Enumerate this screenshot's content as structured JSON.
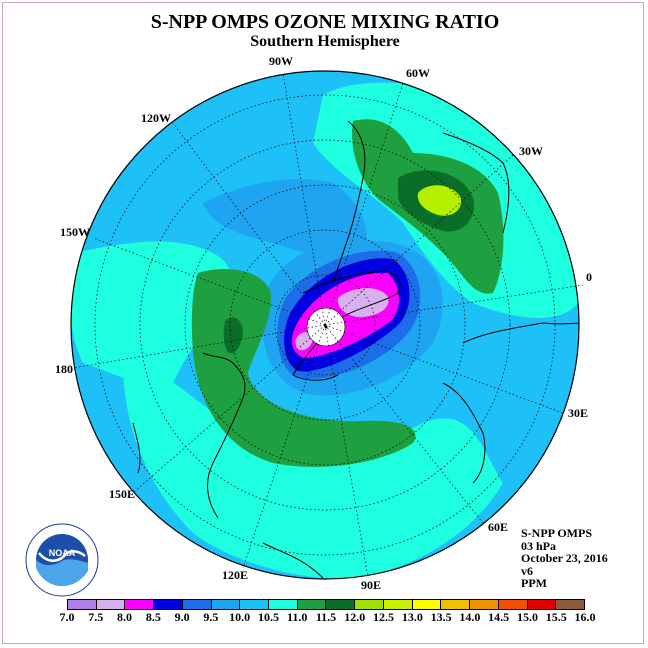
{
  "title": "S-NPP OMPS OZONE MIXING RATIO",
  "subtitle": "Southern Hemisphere",
  "longitude_labels": [
    "90W",
    "60W",
    "30W",
    "120W",
    "150W",
    "0",
    "180",
    "30E",
    "150E",
    "60E",
    "120E",
    "90E"
  ],
  "info": {
    "instrument": "S-NPP OMPS",
    "level": "03 hPa",
    "date": "October 23, 2016",
    "version": "v6",
    "units": "PPM"
  },
  "logo": {
    "name": "NOAA",
    "ring_text": "NATIONAL OCEANIC AND ATMOSPHERIC ADMINISTRATION · U.S. DEPARTMENT OF COMMERCE"
  },
  "colorbar": {
    "colors": [
      "#b07ee8",
      "#d8b0f0",
      "#ff00ff",
      "#0000e0",
      "#1c6ee8",
      "#1ea4f0",
      "#1ec0f8",
      "#1effe0",
      "#1ea040",
      "#0a6e28",
      "#9fe000",
      "#c8f000",
      "#ffff00",
      "#f0c000",
      "#f09000",
      "#f05000",
      "#e00000",
      "#8b5a3c"
    ],
    "labels": [
      "7.0",
      "7.5",
      "8.0",
      "8.5",
      "9.0",
      "9.5",
      "10.0",
      "10.5",
      "11.0",
      "11.5",
      "12.0",
      "12.5",
      "13.0",
      "13.5",
      "14.0",
      "14.5",
      "15.0",
      "15.5",
      "16.0"
    ]
  },
  "map_colors": {
    "base": "#1ec0f8",
    "light_blue": "#1ea4f0",
    "cyan": "#1effe0",
    "green": "#1ea040",
    "dark_green": "#0a6e28",
    "yellow_green": "#b4f000",
    "blue": "#1c6ee8",
    "deep_blue": "#0000e0",
    "magenta": "#ff00ff",
    "lavender": "#d8b0f0"
  }
}
